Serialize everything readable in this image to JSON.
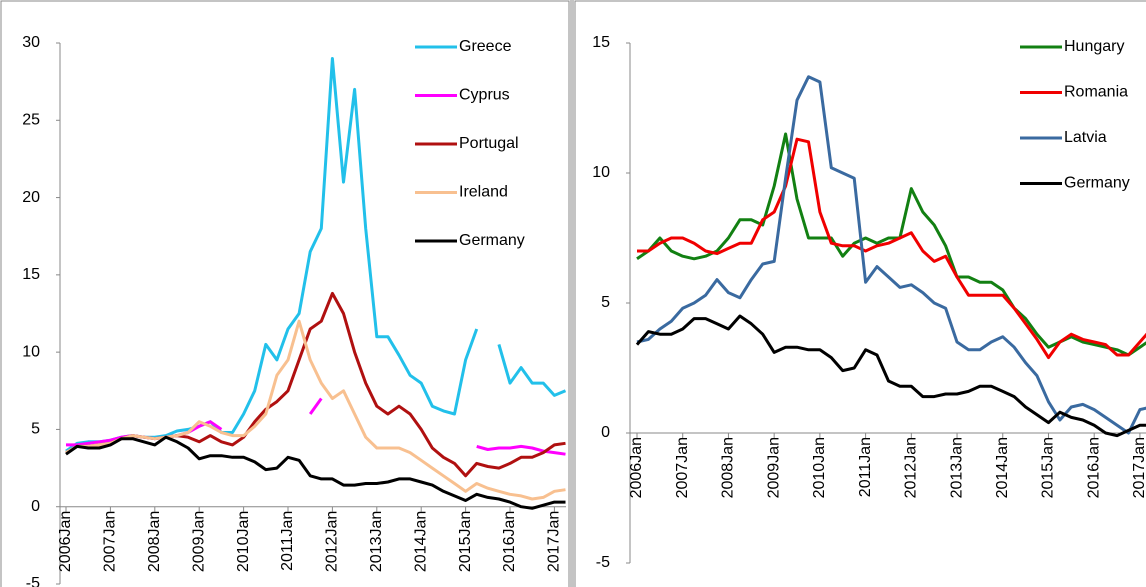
{
  "chart_data": [
    {
      "type": "line",
      "categories": [
        "2006Jan",
        null,
        null,
        null,
        "2007Jan",
        null,
        null,
        null,
        "2008Jan",
        null,
        null,
        null,
        "2009Jan",
        null,
        null,
        null,
        "2010Jan",
        null,
        null,
        null,
        "2011Jan",
        null,
        null,
        null,
        "2012Jan",
        null,
        null,
        null,
        "2013Jan",
        null,
        null,
        null,
        "2014Jan",
        null,
        null,
        null,
        "2015Jan",
        null,
        null,
        null,
        "2016Jan",
        null,
        null,
        null,
        "2017Jan",
        null
      ],
      "ylim": [
        -5,
        30
      ],
      "yticks": [
        -5,
        0,
        5,
        10,
        15,
        20,
        25,
        30
      ],
      "legend": "upper right",
      "series": [
        {
          "name": "Greece",
          "color": "#22c0ea",
          "values": [
            3.6,
            4.1,
            4.2,
            4.2,
            4.3,
            4.5,
            4.6,
            4.5,
            4.5,
            4.6,
            4.9,
            5.0,
            5.2,
            5.5,
            4.8,
            4.8,
            6.0,
            7.5,
            10.5,
            9.5,
            11.5,
            12.5,
            16.5,
            18.0,
            29.0,
            21.0,
            27.0,
            18.0,
            11.0,
            11.0,
            9.8,
            8.5,
            8.0,
            6.5,
            6.2,
            6.0,
            9.5,
            11.5,
            null,
            10.5,
            8.0,
            9.0,
            8.0,
            8.0,
            7.2,
            7.5
          ]
        },
        {
          "name": "Cyprus",
          "color": "#ff00ff",
          "values": [
            4.0,
            4.0,
            4.1,
            4.2,
            4.3,
            4.5,
            4.6,
            4.5,
            4.4,
            4.5,
            4.6,
            4.8,
            5.2,
            5.5,
            5.0,
            null,
            null,
            null,
            null,
            null,
            null,
            null,
            6.0,
            7.0,
            null,
            null,
            null,
            null,
            null,
            null,
            null,
            null,
            null,
            null,
            null,
            null,
            null,
            3.9,
            3.7,
            3.8,
            3.8,
            3.9,
            3.8,
            3.6,
            3.5,
            3.4
          ]
        },
        {
          "name": "Portugal",
          "color": "#b01010",
          "values": [
            3.5,
            3.9,
            3.9,
            4.0,
            4.1,
            4.4,
            4.6,
            4.5,
            4.4,
            4.5,
            4.6,
            4.5,
            4.2,
            4.6,
            4.2,
            4.0,
            4.5,
            5.5,
            6.3,
            6.8,
            7.5,
            9.5,
            11.5,
            12.0,
            13.8,
            12.5,
            10.0,
            8.0,
            6.5,
            6.0,
            6.5,
            6.0,
            5.0,
            3.8,
            3.2,
            2.8,
            2.0,
            2.8,
            2.6,
            2.5,
            2.8,
            3.2,
            3.2,
            3.5,
            4.0,
            4.1
          ]
        },
        {
          "name": "Ireland",
          "color": "#f8c090",
          "values": [
            3.5,
            3.9,
            3.9,
            4.0,
            4.1,
            4.4,
            4.6,
            4.5,
            4.4,
            4.5,
            4.6,
            4.8,
            5.5,
            5.2,
            4.8,
            4.6,
            4.6,
            5.2,
            6.0,
            8.5,
            9.5,
            12.0,
            9.5,
            8.0,
            7.0,
            7.5,
            6.0,
            4.5,
            3.8,
            3.8,
            3.8,
            3.5,
            3.0,
            2.5,
            2.0,
            1.5,
            1.0,
            1.5,
            1.2,
            1.0,
            0.8,
            0.7,
            0.5,
            0.6,
            1.0,
            1.1
          ]
        },
        {
          "name": "Germany",
          "color": "#000000",
          "values": [
            3.4,
            3.9,
            3.8,
            3.8,
            4.0,
            4.4,
            4.4,
            4.2,
            4.0,
            4.5,
            4.2,
            3.8,
            3.1,
            3.3,
            3.3,
            3.2,
            3.2,
            2.9,
            2.4,
            2.5,
            3.2,
            3.0,
            2.0,
            1.8,
            1.8,
            1.4,
            1.4,
            1.5,
            1.5,
            1.6,
            1.8,
            1.8,
            1.6,
            1.4,
            1.0,
            0.7,
            0.4,
            0.8,
            0.6,
            0.5,
            0.3,
            0.0,
            -0.1,
            0.1,
            0.3,
            0.3
          ]
        }
      ]
    },
    {
      "type": "line",
      "categories": [
        "2006Jan",
        null,
        null,
        null,
        "2007Jan",
        null,
        null,
        null,
        "2008Jan",
        null,
        null,
        null,
        "2009Jan",
        null,
        null,
        null,
        "2010Jan",
        null,
        null,
        null,
        "2011Jan",
        null,
        null,
        null,
        "2012Jan",
        null,
        null,
        null,
        "2013Jan",
        null,
        null,
        null,
        "2014Jan",
        null,
        null,
        null,
        "2015Jan",
        null,
        null,
        null,
        "2016Jan",
        null,
        null,
        null,
        "2017Jan",
        null
      ],
      "ylim": [
        -5,
        15
      ],
      "yticks": [
        -5,
        0,
        5,
        10,
        15
      ],
      "legend": "upper right",
      "series": [
        {
          "name": "Hungary",
          "color": "#128012",
          "values": [
            6.7,
            7.0,
            7.5,
            7.0,
            6.8,
            6.7,
            6.8,
            7.0,
            7.5,
            8.2,
            8.2,
            8.0,
            9.5,
            11.5,
            9.0,
            7.5,
            7.5,
            7.5,
            6.8,
            7.3,
            7.5,
            7.3,
            7.5,
            7.5,
            9.4,
            8.5,
            8.0,
            7.2,
            6.0,
            6.0,
            5.8,
            5.8,
            5.5,
            4.8,
            4.4,
            3.8,
            3.3,
            3.5,
            3.7,
            3.5,
            3.4,
            3.3,
            3.2,
            3.0,
            3.3,
            3.6
          ]
        },
        {
          "name": "Romania",
          "color": "#f00000",
          "values": [
            7.0,
            7.0,
            7.3,
            7.5,
            7.5,
            7.3,
            7.0,
            6.9,
            7.1,
            7.3,
            7.3,
            8.2,
            8.5,
            9.5,
            11.3,
            11.2,
            8.5,
            7.3,
            7.2,
            7.2,
            7.0,
            7.2,
            7.3,
            7.5,
            7.7,
            7.0,
            6.6,
            6.8,
            6.0,
            5.3,
            5.3,
            5.3,
            5.3,
            4.8,
            4.2,
            3.6,
            2.9,
            3.5,
            3.8,
            3.6,
            3.5,
            3.4,
            3.0,
            3.0,
            3.5,
            4.0
          ]
        },
        {
          "name": "Latvia",
          "color": "#3a6aa0",
          "values": [
            3.5,
            3.6,
            4.0,
            4.3,
            4.8,
            5.0,
            5.3,
            5.9,
            5.4,
            5.2,
            5.9,
            6.5,
            6.6,
            9.8,
            12.8,
            13.7,
            13.5,
            10.2,
            10.0,
            9.8,
            5.8,
            6.4,
            6.0,
            5.6,
            5.7,
            5.4,
            5.0,
            4.8,
            3.5,
            3.2,
            3.2,
            3.5,
            3.7,
            3.3,
            2.7,
            2.2,
            1.2,
            0.5,
            1.0,
            1.1,
            0.9,
            0.6,
            0.3,
            0.0,
            0.9,
            1.0
          ]
        },
        {
          "name": "Germany",
          "color": "#000000",
          "values": [
            3.4,
            3.9,
            3.8,
            3.8,
            4.0,
            4.4,
            4.4,
            4.2,
            4.0,
            4.5,
            4.2,
            3.8,
            3.1,
            3.3,
            3.3,
            3.2,
            3.2,
            2.9,
            2.4,
            2.5,
            3.2,
            3.0,
            2.0,
            1.8,
            1.8,
            1.4,
            1.4,
            1.5,
            1.5,
            1.6,
            1.8,
            1.8,
            1.6,
            1.4,
            1.0,
            0.7,
            0.4,
            0.8,
            0.6,
            0.5,
            0.3,
            0.0,
            -0.1,
            0.1,
            0.3,
            0.3
          ]
        }
      ]
    }
  ]
}
